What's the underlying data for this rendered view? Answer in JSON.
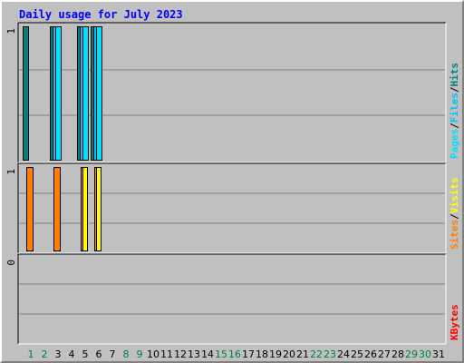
{
  "title": "Daily usage for July 2023",
  "colors": {
    "hits": "#008080",
    "files": "#00c0ff",
    "pages": "#00e0ff",
    "visits": "#ffff00",
    "sites": "#ff8000",
    "kbytes": "#ff0000",
    "weekend": "#008040",
    "weekday": "#000000",
    "plot_bg": "#c0c0c0"
  },
  "chart_data": [
    {
      "type": "bar",
      "panel": "hits-files-pages",
      "ylim": [
        0,
        1
      ],
      "y_tick_label": "1",
      "right_labels": [
        {
          "text": "Pages",
          "color_key": "pages"
        },
        {
          "text": "/",
          "color_key": "weekday"
        },
        {
          "text": "Files",
          "color_key": "files"
        },
        {
          "text": "/",
          "color_key": "weekday"
        },
        {
          "text": "Hits",
          "color_key": "hits"
        }
      ],
      "categories": [
        "1",
        "2",
        "3",
        "4",
        "5",
        "6",
        "7",
        "8",
        "9",
        "10",
        "11",
        "12",
        "13",
        "14",
        "15",
        "16",
        "17",
        "18",
        "19",
        "20",
        "21",
        "22",
        "23",
        "24",
        "25",
        "26",
        "27",
        "28",
        "29",
        "30",
        "31"
      ],
      "series": [
        {
          "name": "Hits",
          "color_key": "hits",
          "values": [
            1,
            0,
            1,
            0,
            1,
            1,
            0,
            0,
            0,
            0,
            0,
            0,
            0,
            0,
            0,
            0,
            0,
            0,
            0,
            0,
            0,
            0,
            0,
            0,
            0,
            0,
            0,
            0,
            0,
            0,
            0
          ]
        },
        {
          "name": "Files",
          "color_key": "files",
          "values": [
            0,
            0,
            1,
            0,
            1,
            1,
            0,
            0,
            0,
            0,
            0,
            0,
            0,
            0,
            0,
            0,
            0,
            0,
            0,
            0,
            0,
            0,
            0,
            0,
            0,
            0,
            0,
            0,
            0,
            0,
            0
          ]
        },
        {
          "name": "Pages",
          "color_key": "pages",
          "values": [
            0,
            0,
            1,
            0,
            1,
            1,
            0,
            0,
            0,
            0,
            0,
            0,
            0,
            0,
            0,
            0,
            0,
            0,
            0,
            0,
            0,
            0,
            0,
            0,
            0,
            0,
            0,
            0,
            0,
            0,
            0
          ]
        }
      ]
    },
    {
      "type": "bar",
      "panel": "visits-sites",
      "ylim": [
        0,
        1
      ],
      "y_tick_label": "1",
      "right_labels": [
        {
          "text": "Sites",
          "color_key": "sites"
        },
        {
          "text": "/",
          "color_key": "weekday"
        },
        {
          "text": "Visits",
          "color_key": "visits"
        }
      ],
      "categories": [
        "1",
        "2",
        "3",
        "4",
        "5",
        "6",
        "7",
        "8",
        "9",
        "10",
        "11",
        "12",
        "13",
        "14",
        "15",
        "16",
        "17",
        "18",
        "19",
        "20",
        "21",
        "22",
        "23",
        "24",
        "25",
        "26",
        "27",
        "28",
        "29",
        "30",
        "31"
      ],
      "series": [
        {
          "name": "Visits",
          "color_key": "visits",
          "values": [
            0,
            0,
            0,
            0,
            1,
            1,
            0,
            0,
            0,
            0,
            0,
            0,
            0,
            0,
            0,
            0,
            0,
            0,
            0,
            0,
            0,
            0,
            0,
            0,
            0,
            0,
            0,
            0,
            0,
            0,
            0
          ]
        },
        {
          "name": "Sites",
          "color_key": "sites",
          "values": [
            1,
            0,
            1,
            0,
            1,
            1,
            0,
            0,
            0,
            0,
            0,
            0,
            0,
            0,
            0,
            0,
            0,
            0,
            0,
            0,
            0,
            0,
            0,
            0,
            0,
            0,
            0,
            0,
            0,
            0,
            0
          ]
        }
      ]
    },
    {
      "type": "bar",
      "panel": "kbytes",
      "ylim": [
        0,
        1
      ],
      "y_tick_label": "0",
      "right_labels": [
        {
          "text": "KBytes",
          "color_key": "kbytes"
        }
      ],
      "categories": [
        "1",
        "2",
        "3",
        "4",
        "5",
        "6",
        "7",
        "8",
        "9",
        "10",
        "11",
        "12",
        "13",
        "14",
        "15",
        "16",
        "17",
        "18",
        "19",
        "20",
        "21",
        "22",
        "23",
        "24",
        "25",
        "26",
        "27",
        "28",
        "29",
        "30",
        "31"
      ],
      "series": [
        {
          "name": "KBytes",
          "color_key": "kbytes",
          "values": [
            0,
            0,
            0,
            0,
            0,
            0,
            0,
            0,
            0,
            0,
            0,
            0,
            0,
            0,
            0,
            0,
            0,
            0,
            0,
            0,
            0,
            0,
            0,
            0,
            0,
            0,
            0,
            0,
            0,
            0,
            0
          ]
        }
      ]
    }
  ],
  "x_axis": {
    "labels": [
      "1",
      "2",
      "3",
      "4",
      "5",
      "6",
      "7",
      "8",
      "9",
      "10",
      "11",
      "12",
      "13",
      "14",
      "15",
      "16",
      "17",
      "18",
      "19",
      "20",
      "21",
      "22",
      "23",
      "24",
      "25",
      "26",
      "27",
      "28",
      "29",
      "30",
      "31"
    ],
    "weekend_days": [
      "1",
      "2",
      "8",
      "9",
      "15",
      "16",
      "22",
      "23",
      "29",
      "30"
    ]
  }
}
